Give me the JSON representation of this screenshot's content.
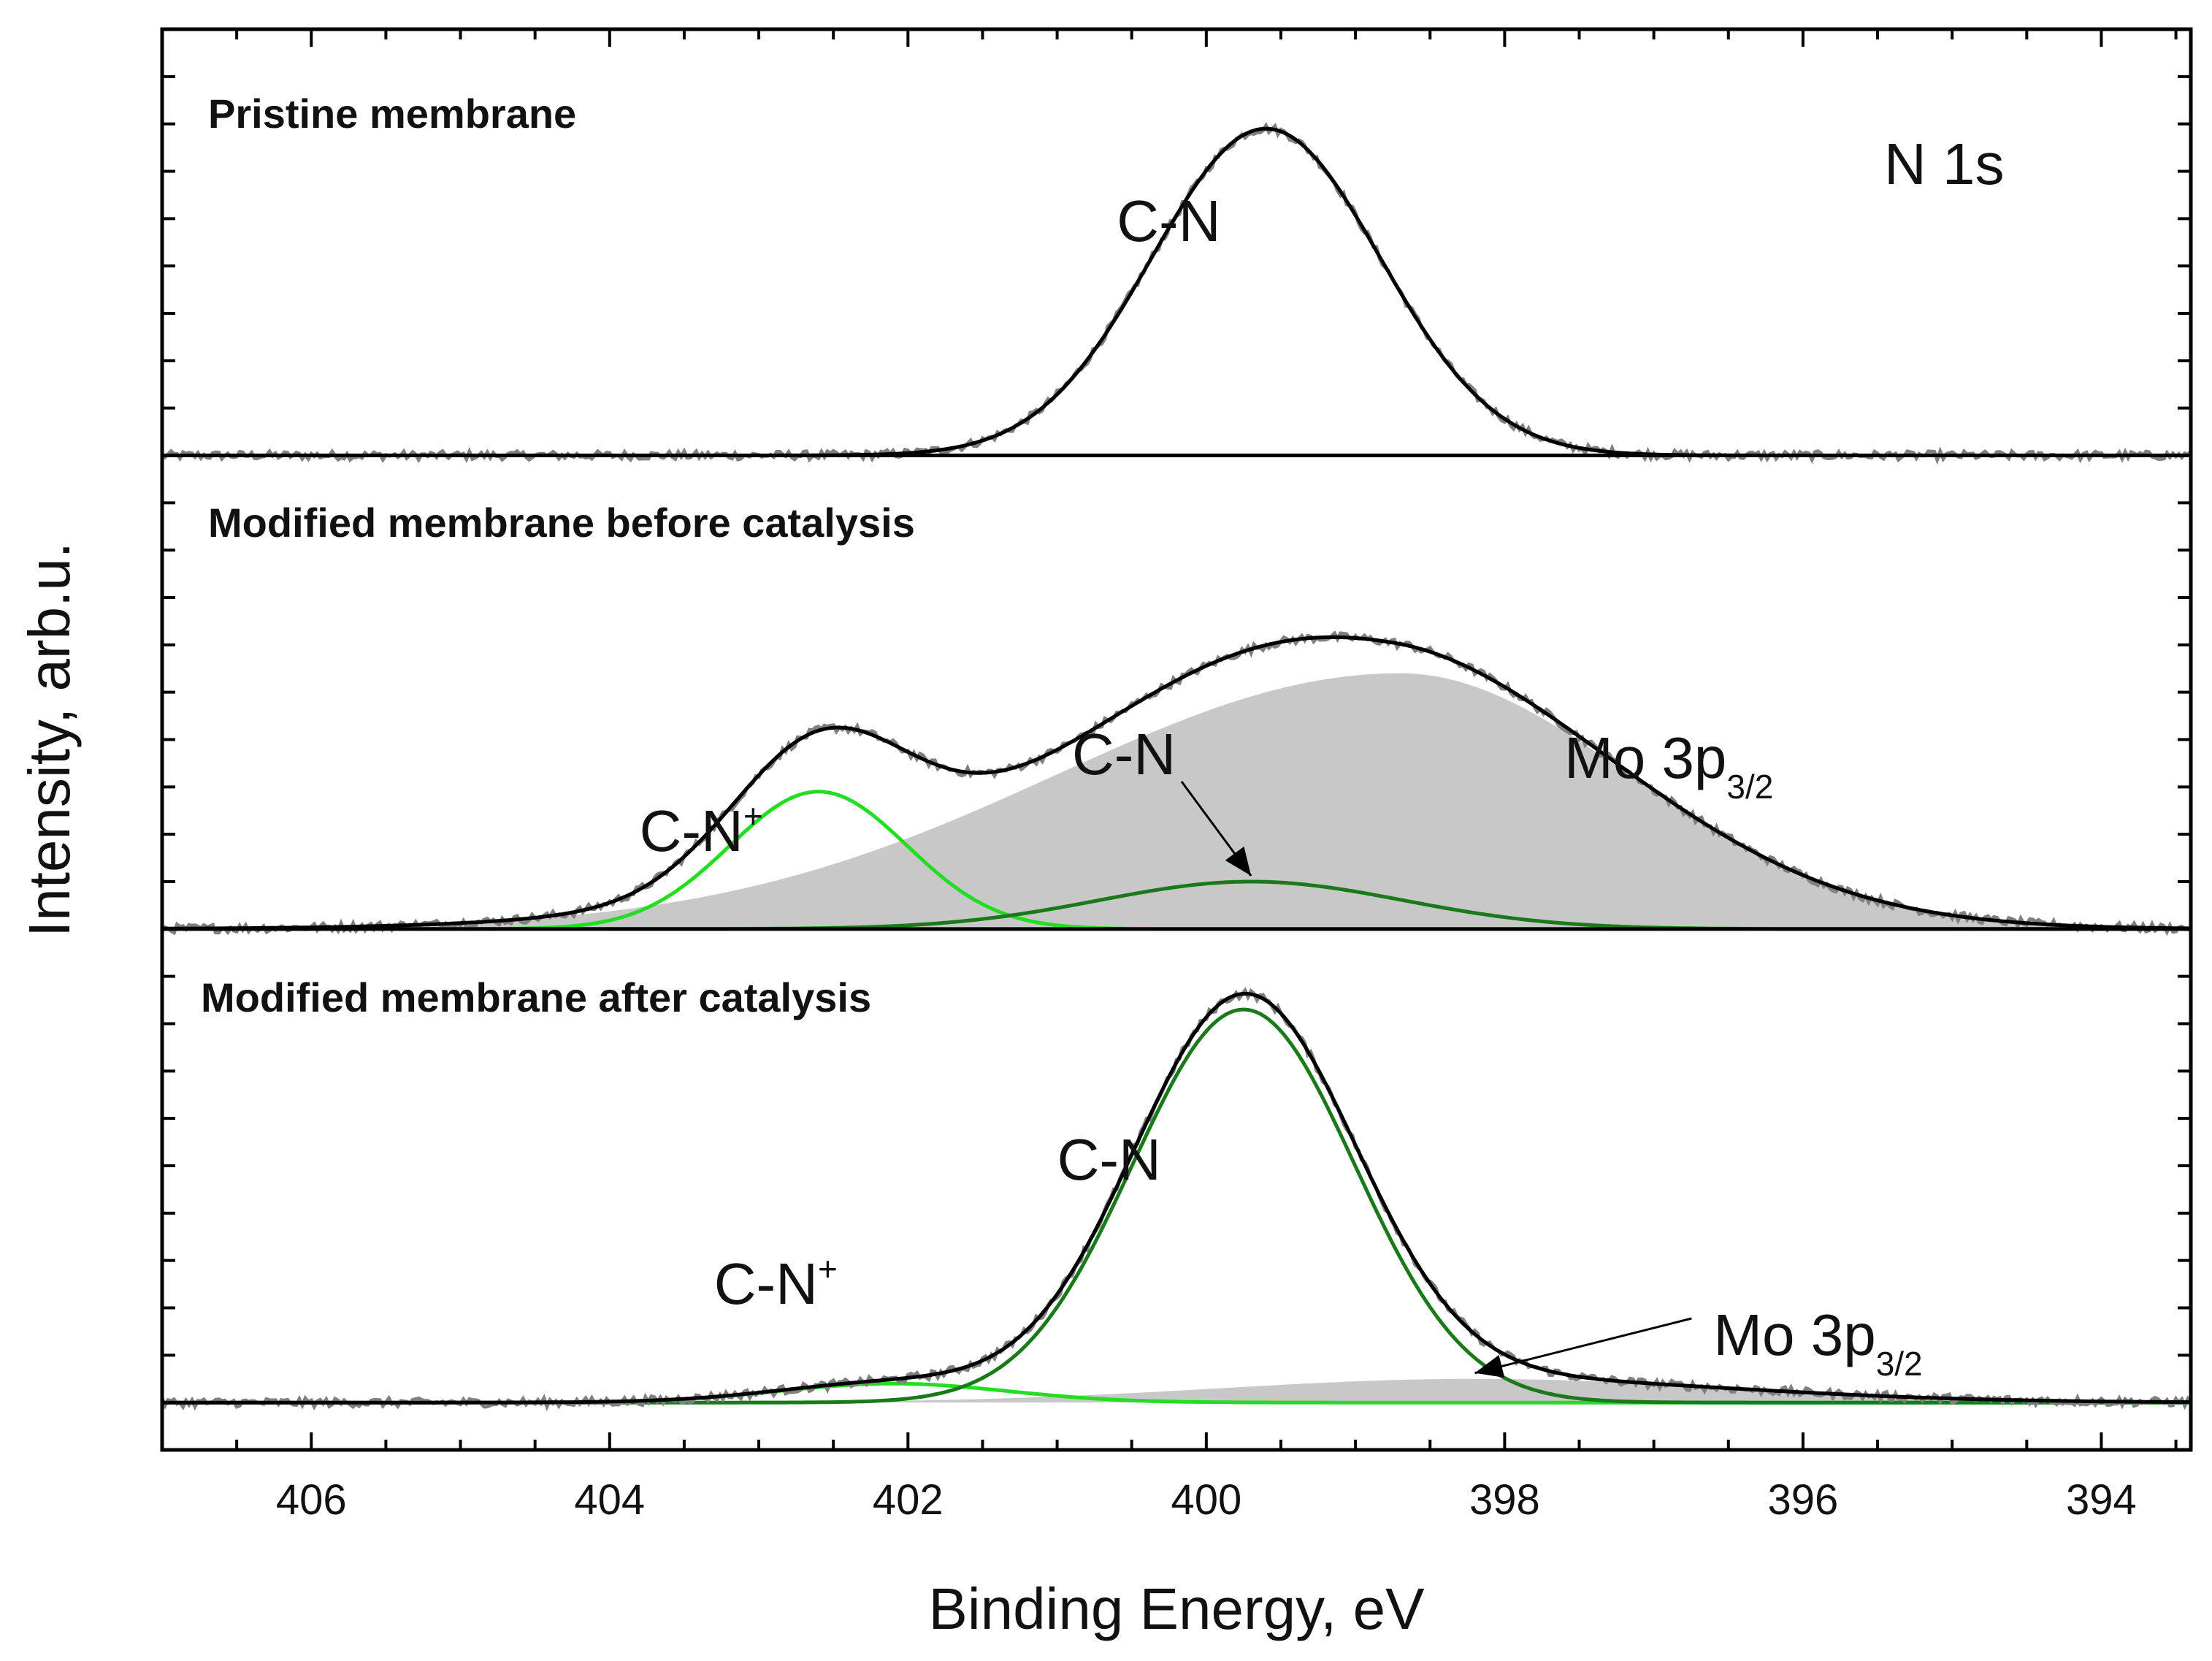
{
  "chart_data": {
    "type": "line",
    "title": "N 1s",
    "xlabel": "Binding Energy, eV",
    "ylabel": "Intensity, arb.u.",
    "xlim": [
      407,
      393.4
    ],
    "x_reversed": true,
    "xticks": [
      406,
      404,
      402,
      400,
      398,
      396,
      394
    ],
    "ylim": [
      0,
      3
    ],
    "y_tick_labels_shown": false,
    "grid": false,
    "panels": [
      {
        "title": "Pristine membrane",
        "offset": 2.1,
        "peaks": [
          {
            "label": "C-N",
            "center": 399.6,
            "fwhm": 1.8,
            "height": 0.69,
            "color": "#000000",
            "role": "component"
          }
        ],
        "annotations": [
          {
            "text": "C-N",
            "at_x": 400.6
          }
        ],
        "series": [
          {
            "name": "Experimental",
            "color": "#808080"
          },
          {
            "name": "Fit envelope",
            "color": "#000000"
          }
        ]
      },
      {
        "title": "Modified membrane before catalysis",
        "offset": 1.1,
        "peaks": [
          {
            "label": "C-N+",
            "center": 402.6,
            "fwhm": 1.4,
            "height": 0.29,
            "color": "#22dd22",
            "role": "component"
          },
          {
            "label": "C-N",
            "center": 399.7,
            "fwhm": 2.4,
            "height": 0.1,
            "color": "#1a7a1a",
            "role": "component"
          },
          {
            "label": "Mo 3p3/2",
            "center": 398.7,
            "fwhm": 3.6,
            "height": 0.54,
            "color": "#c8c8c8",
            "role": "filled",
            "tail_low": 1.5,
            "tail_high": 1.0
          }
        ],
        "annotations": [
          {
            "text": "C-N",
            "sup": "+",
            "at_x": 403.8
          },
          {
            "text": "C-N",
            "at_x": 400.9,
            "arrow_to_x": 399.7
          },
          {
            "text": "Mo 3p",
            "sub": "3/2",
            "at_x": 397.6
          }
        ],
        "series": [
          {
            "name": "Experimental",
            "color": "#808080"
          },
          {
            "name": "Fit envelope",
            "color": "#000000"
          }
        ]
      },
      {
        "title": "Modified membrane after catalysis",
        "offset": 0.1,
        "peaks": [
          {
            "label": "C-N+",
            "center": 402.1,
            "fwhm": 1.8,
            "height": 0.04,
            "color": "#22dd22",
            "role": "component"
          },
          {
            "label": "C-N",
            "center": 399.75,
            "fwhm": 1.75,
            "height": 0.83,
            "color": "#1a7a1a",
            "role": "component"
          },
          {
            "label": "Mo 3p3/2",
            "center": 398.2,
            "fwhm": 4.0,
            "height": 0.05,
            "color": "#c8c8c8",
            "role": "filled"
          }
        ],
        "annotations": [
          {
            "text": "C-N",
            "sup": "+",
            "at_x": 403.3
          },
          {
            "text": "C-N",
            "at_x": 401.0
          },
          {
            "text": "Mo 3p",
            "sub": "3/2",
            "at_x": 396.6,
            "arrow_to_x": 398.2
          }
        ],
        "series": [
          {
            "name": "Experimental",
            "color": "#808080"
          },
          {
            "name": "Fit envelope",
            "color": "#000000"
          }
        ]
      }
    ]
  }
}
